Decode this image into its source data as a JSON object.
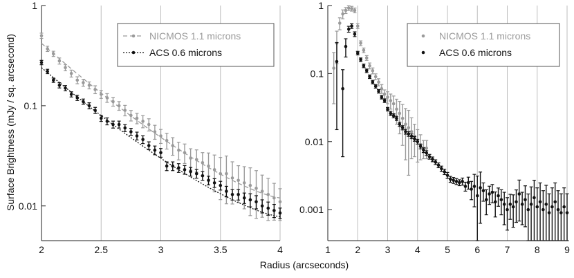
{
  "ylabel": "Surface Brightness (mJy / sq. arcsecond)",
  "xlabel": "Radius (arcseconds)",
  "colors": {
    "nicmos": "#9a9a9a",
    "acs": "#111111",
    "grid": "#bdbdbd",
    "axis": "#222222"
  },
  "chart_data": [
    {
      "type": "scatter",
      "title": "",
      "xscale": "linear",
      "yscale": "log",
      "xlim": [
        2,
        4
      ],
      "ylim": [
        0.0045,
        1.0
      ],
      "xticks": [
        2,
        2.5,
        3,
        3.5,
        4
      ],
      "xtick_labels": [
        "2",
        "2.5",
        "3",
        "3.5",
        "4"
      ],
      "yticks": [
        1,
        0.1,
        0.01
      ],
      "ytick_labels": [
        "1",
        "0.1",
        "0.01"
      ],
      "legend_position": "top-right",
      "series": [
        {
          "name": "NICMOS 1.1 microns",
          "style": "dashed-with-markers",
          "x": [
            2.0,
            2.05,
            2.1,
            2.15,
            2.2,
            2.25,
            2.3,
            2.35,
            2.4,
            2.45,
            2.5,
            2.55,
            2.6,
            2.65,
            2.7,
            2.75,
            2.8,
            2.85,
            2.9,
            2.95,
            3.0,
            3.05,
            3.1,
            3.15,
            3.2,
            3.25,
            3.3,
            3.35,
            3.4,
            3.45,
            3.5,
            3.55,
            3.6,
            3.65,
            3.7,
            3.75,
            3.8,
            3.85,
            3.9,
            3.95,
            4.0
          ],
          "y": [
            0.5,
            0.37,
            0.33,
            0.28,
            0.24,
            0.21,
            0.18,
            0.17,
            0.16,
            0.145,
            0.13,
            0.12,
            0.11,
            0.1,
            0.09,
            0.08,
            0.075,
            0.07,
            0.065,
            0.055,
            0.05,
            0.045,
            0.04,
            0.036,
            0.034,
            0.03,
            0.029,
            0.027,
            0.025,
            0.023,
            0.021,
            0.021,
            0.019,
            0.018,
            0.017,
            0.016,
            0.015,
            0.014,
            0.013,
            0.012,
            0.011
          ],
          "yerr_rel": [
            0.06,
            0.06,
            0.06,
            0.07,
            0.07,
            0.08,
            0.08,
            0.08,
            0.08,
            0.09,
            0.09,
            0.1,
            0.1,
            0.1,
            0.12,
            0.12,
            0.12,
            0.14,
            0.14,
            0.16,
            0.16,
            0.18,
            0.2,
            0.2,
            0.22,
            0.24,
            0.25,
            0.26,
            0.35,
            0.4,
            0.45,
            0.5,
            0.45,
            0.4,
            0.45,
            0.5,
            0.5,
            0.45,
            0.45,
            0.4,
            0.35
          ],
          "fit": [
            0.42,
            0.012
          ]
        },
        {
          "name": "ACS 0.6 microns",
          "style": "dotted-with-markers",
          "x": [
            2.0,
            2.05,
            2.1,
            2.15,
            2.2,
            2.25,
            2.3,
            2.35,
            2.4,
            2.45,
            2.5,
            2.55,
            2.6,
            2.65,
            2.7,
            2.75,
            2.8,
            2.85,
            2.9,
            2.95,
            3.0,
            3.05,
            3.1,
            3.15,
            3.2,
            3.25,
            3.3,
            3.35,
            3.4,
            3.45,
            3.5,
            3.55,
            3.6,
            3.65,
            3.7,
            3.75,
            3.8,
            3.85,
            3.9,
            3.95,
            4.0
          ],
          "y": [
            0.27,
            0.22,
            0.18,
            0.16,
            0.15,
            0.13,
            0.12,
            0.11,
            0.1,
            0.09,
            0.075,
            0.07,
            0.065,
            0.065,
            0.06,
            0.055,
            0.05,
            0.046,
            0.04,
            0.036,
            0.034,
            0.025,
            0.025,
            0.024,
            0.023,
            0.022,
            0.021,
            0.02,
            0.018,
            0.017,
            0.016,
            0.014,
            0.013,
            0.013,
            0.012,
            0.0115,
            0.011,
            0.01,
            0.0095,
            0.009,
            0.0085
          ],
          "yerr_rel": [
            0.05,
            0.05,
            0.05,
            0.06,
            0.06,
            0.06,
            0.06,
            0.06,
            0.07,
            0.07,
            0.07,
            0.08,
            0.08,
            0.08,
            0.08,
            0.08,
            0.09,
            0.09,
            0.09,
            0.1,
            0.1,
            0.1,
            0.1,
            0.1,
            0.1,
            0.1,
            0.1,
            0.1,
            0.1,
            0.1,
            0.1,
            0.12,
            0.12,
            0.12,
            0.12,
            0.15,
            0.15,
            0.15,
            0.15,
            0.15,
            0.12
          ],
          "fit": [
            0.24,
            0.0078
          ]
        }
      ]
    },
    {
      "type": "scatter",
      "title": "",
      "xscale": "linear",
      "yscale": "log",
      "xlim": [
        1,
        9
      ],
      "ylim": [
        0.00035,
        1.0
      ],
      "xticks": [
        1,
        2,
        3,
        4,
        5,
        6,
        7,
        8,
        9
      ],
      "xtick_labels": [
        "1",
        "2",
        "3",
        "4",
        "5",
        "6",
        "7",
        "8",
        "9"
      ],
      "yticks": [
        1,
        0.1,
        0.01,
        0.001
      ],
      "ytick_labels": [
        "1",
        "0.1",
        "0.01",
        "0.001"
      ],
      "legend_position": "top-right",
      "series": [
        {
          "name": "NICMOS 1.1 microns",
          "style": "markers",
          "x": [
            1.2,
            1.3,
            1.4,
            1.5,
            1.6,
            1.7,
            1.8,
            1.9,
            2.0,
            2.1,
            2.2,
            2.3,
            2.4,
            2.5,
            2.6,
            2.7,
            2.8,
            2.9,
            3.0,
            3.1,
            3.2,
            3.3,
            3.4,
            3.5,
            3.6,
            3.7,
            3.8,
            3.9,
            4.0,
            4.1,
            4.2,
            4.3
          ],
          "y": [
            0.12,
            0.28,
            0.55,
            0.75,
            0.85,
            0.92,
            0.9,
            0.85,
            0.5,
            0.28,
            0.22,
            0.17,
            0.13,
            0.11,
            0.09,
            0.075,
            0.06,
            0.05,
            0.045,
            0.04,
            0.036,
            0.03,
            0.026,
            0.022,
            0.018,
            0.016,
            0.014,
            0.012,
            0.01,
            0.009,
            0.008,
            0.008
          ],
          "yerr_rel": [
            0.7,
            0.5,
            0.2,
            0.15,
            0.1,
            0.08,
            0.08,
            0.08,
            0.08,
            0.08,
            0.08,
            0.08,
            0.1,
            0.1,
            0.1,
            0.12,
            0.15,
            0.15,
            0.2,
            0.25,
            0.3,
            0.4,
            0.5,
            0.6,
            0.7,
            0.8,
            0.6,
            0.5,
            0.5,
            0.4,
            0.3,
            0.3
          ]
        },
        {
          "name": "ACS 0.6 microns",
          "style": "markers",
          "x": [
            1.3,
            1.5,
            1.6,
            1.7,
            1.8,
            1.9,
            2.0,
            2.1,
            2.2,
            2.3,
            2.4,
            2.5,
            2.6,
            2.7,
            2.8,
            2.9,
            3.0,
            3.1,
            3.2,
            3.3,
            3.4,
            3.5,
            3.6,
            3.7,
            3.8,
            3.9,
            4.0,
            4.1,
            4.2,
            4.3,
            4.4,
            4.5,
            4.6,
            4.7,
            4.8,
            4.9,
            5.0,
            5.1,
            5.2,
            5.3,
            5.4,
            5.5,
            5.6,
            5.7,
            5.8,
            5.9,
            6.0,
            6.1,
            6.2,
            6.3,
            6.4,
            6.5,
            6.6,
            6.7,
            6.8,
            6.9,
            7.0,
            7.1,
            7.2,
            7.3,
            7.4,
            7.5,
            7.6,
            7.7,
            7.8,
            7.9,
            8.0,
            8.1,
            8.2,
            8.3,
            8.4,
            8.5,
            8.6,
            8.7,
            8.8,
            8.9,
            9.0
          ],
          "y": [
            0.15,
            0.06,
            0.25,
            0.45,
            0.5,
            0.38,
            0.2,
            0.16,
            0.13,
            0.11,
            0.09,
            0.075,
            0.065,
            0.055,
            0.045,
            0.04,
            0.03,
            0.026,
            0.024,
            0.022,
            0.018,
            0.016,
            0.014,
            0.013,
            0.012,
            0.011,
            0.01,
            0.0085,
            0.0075,
            0.0068,
            0.006,
            0.0055,
            0.005,
            0.0045,
            0.004,
            0.0036,
            0.0032,
            0.0028,
            0.0027,
            0.0026,
            0.0025,
            0.0026,
            0.0022,
            0.0025,
            0.002,
            0.0022,
            0.0016,
            0.0021,
            0.0019,
            0.0014,
            0.0017,
            0.0018,
            0.0013,
            0.0016,
            0.0014,
            0.0012,
            0.001,
            0.0012,
            0.0011,
            0.0013,
            0.0017,
            0.0012,
            0.0014,
            0.001,
            0.0012,
            0.0015,
            0.0011,
            0.0013,
            0.001,
            0.0012,
            0.0009,
            0.0011,
            0.0013,
            0.001,
            0.0009,
            0.0011,
            0.0009
          ],
          "yerr_rel": [
            0.9,
            0.9,
            0.3,
            0.1,
            0.08,
            0.08,
            0.06,
            0.06,
            0.06,
            0.06,
            0.06,
            0.06,
            0.06,
            0.06,
            0.06,
            0.06,
            0.06,
            0.07,
            0.07,
            0.07,
            0.07,
            0.07,
            0.08,
            0.08,
            0.08,
            0.08,
            0.08,
            0.08,
            0.08,
            0.08,
            0.08,
            0.08,
            0.08,
            0.08,
            0.09,
            0.09,
            0.1,
            0.1,
            0.1,
            0.1,
            0.1,
            0.12,
            0.15,
            0.2,
            0.3,
            0.5,
            0.95,
            0.7,
            0.3,
            0.4,
            0.3,
            0.3,
            0.4,
            0.3,
            0.4,
            0.5,
            0.5,
            0.4,
            0.5,
            0.5,
            0.6,
            0.5,
            0.6,
            0.7,
            0.8,
            0.8,
            0.9,
            0.9,
            0.9,
            0.9,
            0.9,
            0.9,
            0.9,
            0.9,
            0.9,
            0.9,
            0.9
          ]
        }
      ]
    }
  ]
}
